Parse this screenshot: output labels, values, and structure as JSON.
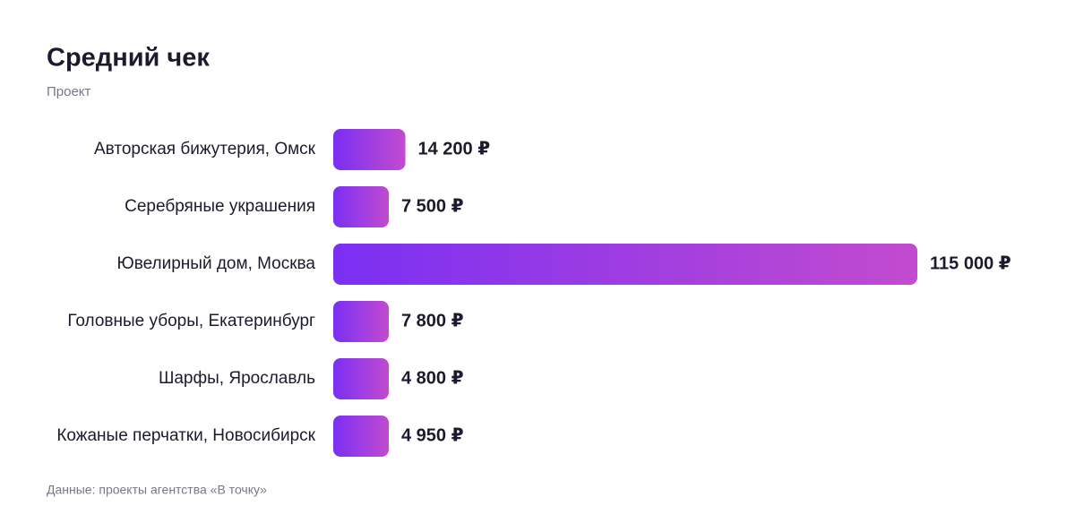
{
  "chart_data": {
    "type": "bar",
    "orientation": "horizontal",
    "title": "Средний чек",
    "subtitle": "Проект",
    "categories": [
      "Авторская бижутерия, Омск",
      "Серебряные украшения",
      "Ювелирный дом, Москва",
      "Головные уборы, Екатеринбург",
      "Шарфы, Ярославль",
      "Кожаные перчатки, Новосибирск"
    ],
    "values": [
      14200,
      7500,
      115000,
      7800,
      4800,
      4950
    ],
    "value_labels": [
      "14 200 ₽",
      "7 500 ₽",
      "115 000 ₽",
      "7 800 ₽",
      "4 800 ₽",
      "4 950 ₽"
    ],
    "xlim": [
      0,
      115000
    ],
    "gradient": [
      "#7a2ff3",
      "#c24bcf"
    ],
    "grid": false,
    "source": "Данные: проекты агентства «В точку»"
  }
}
